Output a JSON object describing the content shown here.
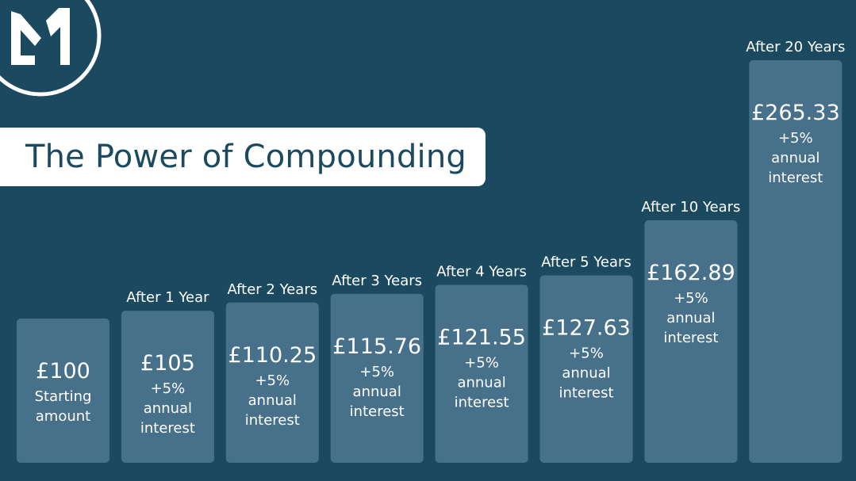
{
  "title": "The Power of Compounding",
  "logo": {
    "icon": "monogram-logo-icon"
  },
  "colors": {
    "background": "#1b4a60",
    "bar": "#47718a",
    "title_box": "#ffffff",
    "title_text": "#1b4a60",
    "text": "#ffffff"
  },
  "chart_data": {
    "type": "bar",
    "title": "The Power of Compounding",
    "xlabel": "",
    "ylabel": "",
    "grid": false,
    "categories": [
      "",
      "After 1 Year",
      "After 2 Years",
      "After 3 Years",
      "After 4 Years",
      "After 5 Years",
      "After 10 Years",
      "After 20 Years"
    ],
    "values": [
      100,
      105,
      110.25,
      115.76,
      121.55,
      127.63,
      162.89,
      265.33
    ],
    "value_labels": [
      "£100",
      "£105",
      "£110.25",
      "£115.76",
      "£121.55",
      "£127.63",
      "£162.89",
      "£265.33"
    ],
    "sub_labels": [
      [
        "Starting",
        "amount"
      ],
      [
        "+5%",
        "annual",
        "interest"
      ],
      [
        "+5%",
        "annual",
        "interest"
      ],
      [
        "+5%",
        "annual",
        "interest"
      ],
      [
        "+5%",
        "annual",
        "interest"
      ],
      [
        "+5%",
        "annual",
        "interest"
      ],
      [
        "+5%",
        "annual",
        "interest"
      ],
      [
        "+5%",
        "annual",
        "interest"
      ]
    ]
  }
}
